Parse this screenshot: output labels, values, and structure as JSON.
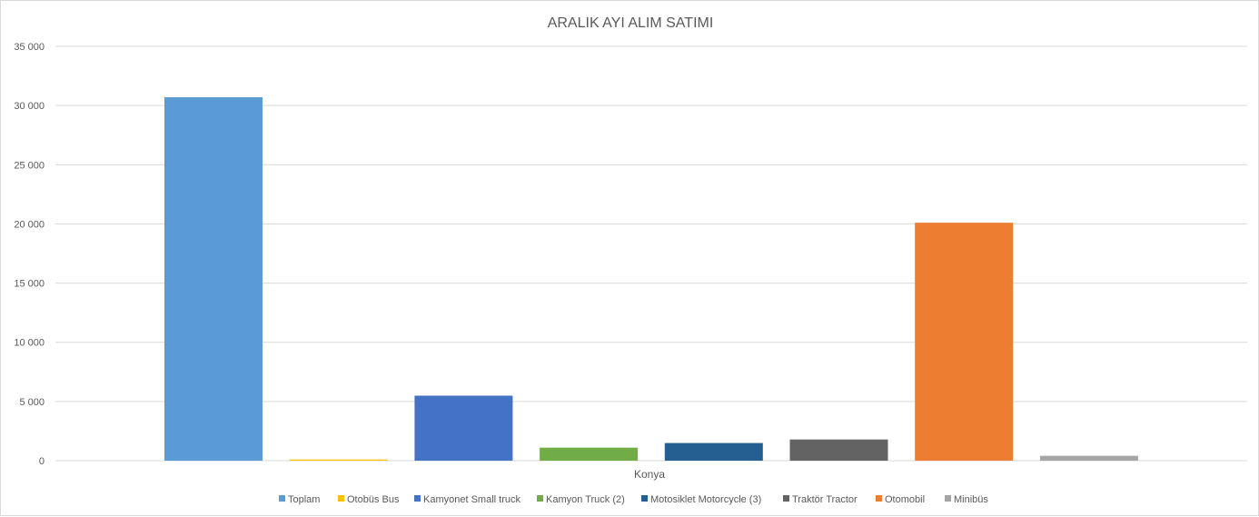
{
  "chart_data": {
    "type": "bar",
    "title": "ARALIK AYI ALIM SATIMI",
    "categories": [
      "Konya"
    ],
    "ylim": [
      0,
      35000
    ],
    "yticks": [
      0,
      5000,
      10000,
      15000,
      20000,
      25000,
      30000,
      35000
    ],
    "ytick_labels": [
      "0",
      "5 000",
      "10 000",
      "15 000",
      "20 000",
      "25 000",
      "30 000",
      "35 000"
    ],
    "grid": true,
    "legend_position": "bottom",
    "series": [
      {
        "name": "Toplam",
        "values": [
          30700
        ],
        "color": "#5b9bd5"
      },
      {
        "name": "Otobüs Bus",
        "values": [
          100
        ],
        "color": "#ffc000"
      },
      {
        "name": "Kamyonet Small truck",
        "values": [
          5490
        ],
        "color": "#4472c4"
      },
      {
        "name": "Kamyon  Truck (2)",
        "values": [
          1100
        ],
        "color": "#70ad47"
      },
      {
        "name": "Motosiklet Motorcycle (3)",
        "values": [
          1490
        ],
        "color": "#255e91"
      },
      {
        "name": "Traktör Tractor",
        "values": [
          1790
        ],
        "color": "#636363"
      },
      {
        "name": "Otomobil",
        "values": [
          20100
        ],
        "color": "#ed7d31"
      },
      {
        "name": "Minibüs",
        "values": [
          410
        ],
        "color": "#a5a5a5"
      }
    ]
  }
}
